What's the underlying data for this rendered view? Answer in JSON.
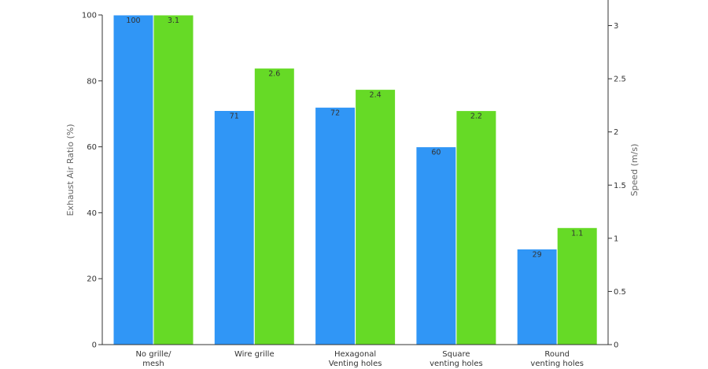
{
  "chart_data": {
    "type": "bar",
    "categories": [
      [
        "No grille/",
        "mesh"
      ],
      [
        "Wire grille"
      ],
      [
        "Hexagonal",
        "Venting holes"
      ],
      [
        "Square",
        "venting holes"
      ],
      [
        "Round",
        "venting holes"
      ]
    ],
    "series": [
      {
        "axis": "left",
        "values": [
          100,
          71,
          72,
          60,
          29
        ],
        "labels": [
          "100",
          "71",
          "72",
          "60",
          "29"
        ],
        "color": "#3096f6"
      },
      {
        "axis": "right",
        "values": [
          3.1,
          2.6,
          2.4,
          2.2,
          1.1
        ],
        "labels": [
          "3.1",
          "2.6",
          "2.4",
          "2.2",
          "1.1"
        ],
        "color": "#66da26"
      }
    ],
    "y_left": {
      "label": "Exhaust Air Ratio (%)",
      "range": [
        0,
        100
      ],
      "ticks": [
        0,
        20,
        40,
        60,
        80,
        100
      ],
      "tick_labels": [
        "0",
        "20",
        "40",
        "60",
        "80",
        "100"
      ]
    },
    "y_right": {
      "label": "Speed (m/s)",
      "range": [
        0,
        3.1
      ],
      "ticks": [
        0,
        0.5,
        1,
        1.5,
        2,
        2.5,
        3
      ],
      "tick_labels": [
        "0",
        "0.5",
        "1",
        "1.5",
        "2",
        "2.5",
        "3"
      ]
    },
    "grid": false,
    "legend": "none"
  }
}
